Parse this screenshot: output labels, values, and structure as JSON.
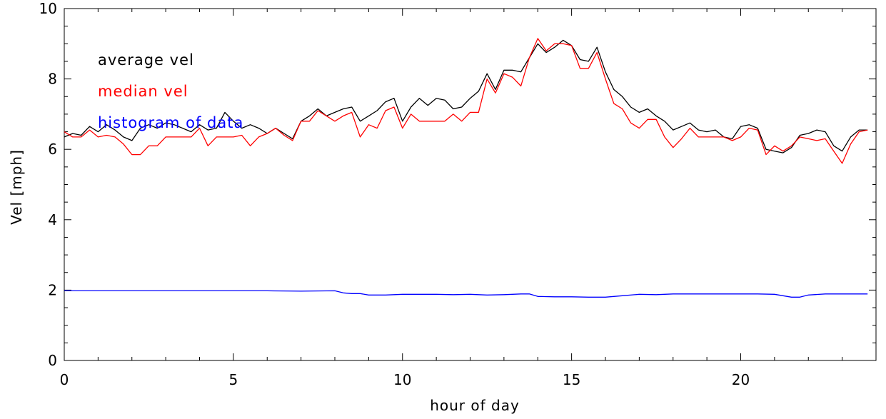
{
  "chart_data": {
    "type": "line",
    "title": "",
    "xlabel": "hour of day",
    "ylabel": "Vel [mph]",
    "xlim": [
      0,
      24
    ],
    "ylim": [
      0,
      10
    ],
    "xticks": [
      0,
      5,
      10,
      15,
      20
    ],
    "yticks": [
      0,
      2,
      4,
      6,
      8,
      10
    ],
    "grid": false,
    "legend_position": "top-left",
    "series": [
      {
        "name": "average vel",
        "color": "#000000",
        "x": [
          0,
          0.25,
          0.5,
          0.75,
          1,
          1.25,
          1.5,
          1.75,
          2,
          2.25,
          2.5,
          2.75,
          3,
          3.25,
          3.5,
          3.75,
          4,
          4.25,
          4.5,
          4.75,
          5,
          5.25,
          5.5,
          5.75,
          6,
          6.25,
          6.5,
          6.75,
          7,
          7.25,
          7.5,
          7.75,
          8,
          8.25,
          8.5,
          8.75,
          9,
          9.25,
          9.5,
          9.75,
          10,
          10.25,
          10.5,
          10.75,
          11,
          11.25,
          11.5,
          11.75,
          12,
          12.25,
          12.5,
          12.75,
          13,
          13.25,
          13.5,
          13.75,
          14,
          14.25,
          14.5,
          14.75,
          15,
          15.25,
          15.5,
          15.75,
          16,
          16.25,
          16.5,
          16.75,
          17,
          17.25,
          17.5,
          17.75,
          18,
          18.25,
          18.5,
          18.75,
          19,
          19.25,
          19.5,
          19.75,
          20,
          20.25,
          20.5,
          20.75,
          21,
          21.25,
          21.5,
          21.75,
          22,
          22.25,
          22.5,
          22.75,
          23,
          23.25,
          23.5,
          23.75
        ],
        "values": [
          6.35,
          6.45,
          6.4,
          6.65,
          6.5,
          6.7,
          6.55,
          6.35,
          6.25,
          6.6,
          6.7,
          6.6,
          6.75,
          6.7,
          6.6,
          6.5,
          6.7,
          6.55,
          6.6,
          7.05,
          6.8,
          6.6,
          6.7,
          6.6,
          6.45,
          6.6,
          6.45,
          6.3,
          6.8,
          6.95,
          7.15,
          6.95,
          7.05,
          7.15,
          7.2,
          6.8,
          6.95,
          7.1,
          7.35,
          7.45,
          6.8,
          7.2,
          7.45,
          7.25,
          7.45,
          7.4,
          7.15,
          7.2,
          7.45,
          7.65,
          8.15,
          7.7,
          8.25,
          8.25,
          8.2,
          8.6,
          9.0,
          8.75,
          8.9,
          9.1,
          8.95,
          8.55,
          8.5,
          8.9,
          8.2,
          7.7,
          7.5,
          7.2,
          7.05,
          7.15,
          6.95,
          6.8,
          6.55,
          6.65,
          6.75,
          6.55,
          6.5,
          6.55,
          6.35,
          6.3,
          6.65,
          6.7,
          6.6,
          6.0,
          5.95,
          5.9,
          6.05,
          6.4,
          6.45,
          6.55,
          6.5,
          6.1,
          5.95,
          6.35,
          6.55,
          6.55
        ]
      },
      {
        "name": "median vel",
        "color": "#ff0000",
        "x": [
          0,
          0.25,
          0.5,
          0.75,
          1,
          1.25,
          1.5,
          1.75,
          2,
          2.25,
          2.5,
          2.75,
          3,
          3.25,
          3.5,
          3.75,
          4,
          4.25,
          4.5,
          4.75,
          5,
          5.25,
          5.5,
          5.75,
          6,
          6.25,
          6.5,
          6.75,
          7,
          7.25,
          7.5,
          7.75,
          8,
          8.25,
          8.5,
          8.75,
          9,
          9.25,
          9.5,
          9.75,
          10,
          10.25,
          10.5,
          10.75,
          11,
          11.25,
          11.5,
          11.75,
          12,
          12.25,
          12.5,
          12.75,
          13,
          13.25,
          13.5,
          13.75,
          14,
          14.25,
          14.5,
          14.75,
          15,
          15.25,
          15.5,
          15.75,
          16,
          16.25,
          16.5,
          16.75,
          17,
          17.25,
          17.5,
          17.75,
          18,
          18.25,
          18.5,
          18.75,
          19,
          19.25,
          19.5,
          19.75,
          20,
          20.25,
          20.5,
          20.75,
          21,
          21.25,
          21.5,
          21.75,
          22,
          22.25,
          22.5,
          22.75,
          23,
          23.25,
          23.5,
          23.75
        ],
        "values": [
          6.5,
          6.35,
          6.35,
          6.55,
          6.35,
          6.4,
          6.35,
          6.15,
          5.85,
          5.85,
          6.1,
          6.1,
          6.35,
          6.35,
          6.35,
          6.35,
          6.6,
          6.1,
          6.35,
          6.35,
          6.35,
          6.4,
          6.1,
          6.35,
          6.45,
          6.6,
          6.4,
          6.25,
          6.8,
          6.8,
          7.1,
          6.95,
          6.8,
          6.95,
          7.05,
          6.35,
          6.7,
          6.6,
          7.1,
          7.2,
          6.6,
          7.0,
          6.8,
          6.8,
          6.8,
          6.8,
          7.0,
          6.8,
          7.05,
          7.05,
          8.0,
          7.6,
          8.15,
          8.05,
          7.8,
          8.6,
          9.15,
          8.8,
          9.0,
          9.0,
          8.95,
          8.3,
          8.3,
          8.75,
          8.0,
          7.3,
          7.15,
          6.75,
          6.6,
          6.85,
          6.85,
          6.35,
          6.05,
          6.3,
          6.6,
          6.35,
          6.35,
          6.35,
          6.35,
          6.25,
          6.35,
          6.6,
          6.55,
          5.85,
          6.1,
          5.95,
          6.1,
          6.35,
          6.3,
          6.25,
          6.3,
          5.95,
          5.6,
          6.15,
          6.5,
          6.55
        ]
      },
      {
        "name": "histogram of data",
        "color": "#0000ff",
        "x": [
          0,
          0.5,
          1,
          2,
          3,
          4,
          5,
          6,
          7,
          8,
          8.25,
          8.5,
          8.75,
          9,
          9.5,
          10,
          10.5,
          11,
          11.5,
          12,
          12.5,
          13,
          13.5,
          13.75,
          14,
          14.5,
          15,
          15.5,
          16,
          16.5,
          17,
          17.5,
          18,
          18.5,
          19,
          19.5,
          20,
          20.5,
          21,
          21.5,
          21.75,
          22,
          22.5,
          23,
          23.5,
          23.75
        ],
        "values": [
          1.98,
          1.98,
          1.98,
          1.98,
          1.98,
          1.98,
          1.98,
          1.98,
          1.97,
          1.98,
          1.92,
          1.9,
          1.9,
          1.86,
          1.86,
          1.88,
          1.88,
          1.88,
          1.87,
          1.88,
          1.86,
          1.87,
          1.89,
          1.89,
          1.82,
          1.81,
          1.81,
          1.8,
          1.8,
          1.84,
          1.88,
          1.87,
          1.89,
          1.89,
          1.89,
          1.89,
          1.89,
          1.89,
          1.88,
          1.8,
          1.8,
          1.86,
          1.89,
          1.89,
          1.89,
          1.89
        ]
      }
    ]
  }
}
